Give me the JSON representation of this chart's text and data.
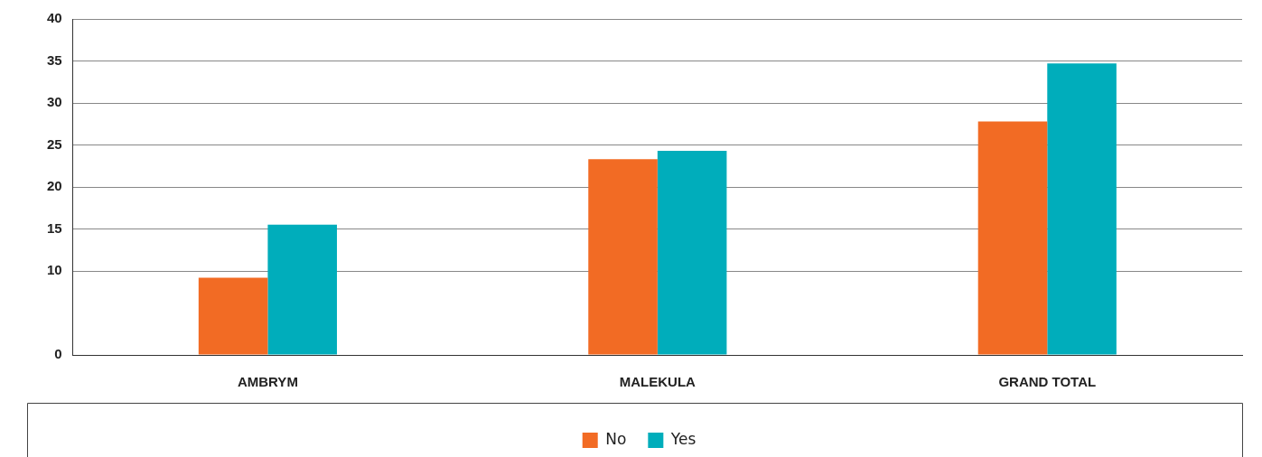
{
  "chart_data": {
    "type": "bar",
    "categories": [
      "AMBRYM",
      "MALEKULA",
      "GRAND TOTAL"
    ],
    "series": [
      {
        "name": "No",
        "color": "#f26b24",
        "values": [
          9.2,
          23.3,
          27.8
        ]
      },
      {
        "name": "Yes",
        "color": "#00adbb",
        "values": [
          15.5,
          24.3,
          34.7
        ]
      }
    ],
    "ylim": [
      0,
      40
    ],
    "yticks": [
      0,
      10,
      15,
      20,
      25,
      30,
      35,
      40
    ],
    "grid": "y",
    "legend": "bottom"
  }
}
